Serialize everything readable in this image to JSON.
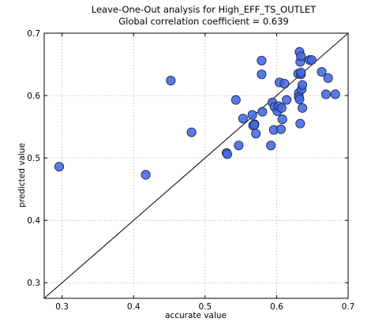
{
  "chart_data": {
    "type": "scatter",
    "title": "Leave-One-Out analysis for High_EFF_TS_OUTLET",
    "subtitle": "Global correlation coefficient = 0.639",
    "xlabel": "accurate value",
    "ylabel": "predicted value",
    "xlim": [
      0.275,
      0.7
    ],
    "ylim": [
      0.275,
      0.7
    ],
    "xticks": [
      0.3,
      0.4,
      0.5,
      0.6,
      0.7
    ],
    "yticks": [
      0.3,
      0.4,
      0.5,
      0.6,
      0.7
    ],
    "xtick_labels": [
      "0.3",
      "0.4",
      "0.5",
      "0.6",
      "0.7"
    ],
    "ytick_labels": [
      "0.3",
      "0.4",
      "0.5",
      "0.6",
      "0.7"
    ],
    "grid": true,
    "reference_line": "y = x",
    "marker_color": "#4169E1",
    "x": [
      0.296,
      0.417,
      0.452,
      0.481,
      0.53,
      0.531,
      0.543,
      0.547,
      0.553,
      0.566,
      0.567,
      0.569,
      0.569,
      0.571,
      0.579,
      0.579,
      0.58,
      0.592,
      0.594,
      0.596,
      0.597,
      0.601,
      0.603,
      0.604,
      0.606,
      0.607,
      0.608,
      0.611,
      0.614,
      0.63,
      0.631,
      0.631,
      0.632,
      0.632,
      0.633,
      0.633,
      0.634,
      0.634,
      0.634,
      0.635,
      0.636,
      0.636,
      0.646,
      0.649,
      0.663,
      0.669,
      0.672,
      0.682
    ],
    "y": [
      0.486,
      0.473,
      0.624,
      0.541,
      0.508,
      0.506,
      0.593,
      0.52,
      0.563,
      0.569,
      0.552,
      0.554,
      0.553,
      0.539,
      0.656,
      0.634,
      0.574,
      0.52,
      0.589,
      0.545,
      0.582,
      0.575,
      0.583,
      0.621,
      0.546,
      0.58,
      0.562,
      0.619,
      0.593,
      0.635,
      0.604,
      0.598,
      0.594,
      0.67,
      0.654,
      0.555,
      0.634,
      0.663,
      0.637,
      0.61,
      0.617,
      0.58,
      0.657,
      0.657,
      0.638,
      0.602,
      0.628,
      0.602
    ]
  }
}
